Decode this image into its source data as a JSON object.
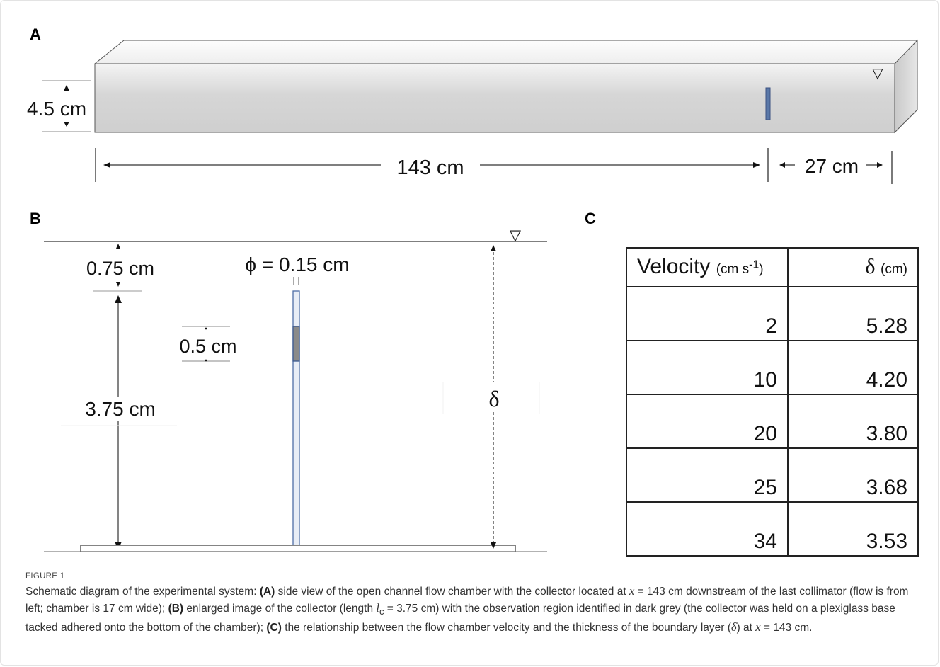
{
  "panels": {
    "a": {
      "letter": "A",
      "height_label": "4.5 cm",
      "length_label": "143 cm",
      "offset_label": "27 cm",
      "surface_symbol": "▽"
    },
    "b": {
      "letter": "B",
      "top_gap_label": "0.75 cm",
      "diameter_label": "ϕ = 0.15 cm",
      "window_label": "0.5 cm",
      "collector_label": "3.75 cm",
      "delta_symbol": "δ",
      "surface_symbol": "▽"
    },
    "c": {
      "letter": "C",
      "table": {
        "header_velocity": "Velocity",
        "header_velocity_unit": "(cm s",
        "header_velocity_exp": "-1",
        "header_velocity_close": ")",
        "header_delta": "δ",
        "header_delta_unit": "(cm)",
        "rows": [
          {
            "velocity": "2",
            "delta": "5.28"
          },
          {
            "velocity": "10",
            "delta": "4.20"
          },
          {
            "velocity": "20",
            "delta": "3.80"
          },
          {
            "velocity": "25",
            "delta": "3.68"
          },
          {
            "velocity": "34",
            "delta": "3.53"
          }
        ]
      }
    }
  },
  "caption": {
    "label": "FIGURE 1",
    "t1": "Schematic diagram of the experimental system: ",
    "b1": "(A)",
    "t2": " side view of the open channel flow chamber with the collector located at ",
    "x1": "x",
    "t3": " = 143 cm downstream of the last collimator (flow is from left; chamber is 17 cm wide); ",
    "b2": "(B)",
    "t4": " enlarged image of the collector (length ",
    "lc": "l",
    "lc_sub": "c",
    "t5": " = 3.75 cm) with the observation region identified in dark grey (the collector was held on a plexiglass base tacked adhered onto the bottom of the chamber); ",
    "b3": "(C)",
    "t6": " the relationship between the flow chamber velocity and the thickness of the boundary layer (",
    "delta": "δ",
    "t7": ") at ",
    "x2": "x",
    "t8": " = 143 cm."
  }
}
